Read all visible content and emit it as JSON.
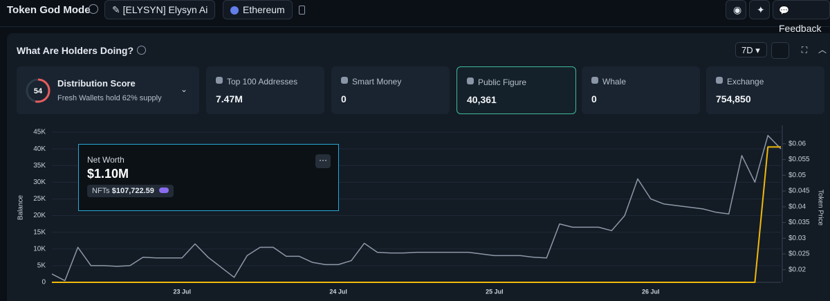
{
  "header": {
    "title": "Token God Mode",
    "token": "[ELYSYN] Elysyn Ai",
    "chain": "Ethereum",
    "feedback": "Feedback"
  },
  "panel": {
    "title": "What Are Holders Doing?",
    "period": "7D"
  },
  "distribution": {
    "score": "54",
    "title": "Distribution Score",
    "subtitle": "Fresh Wallets hold 62% supply"
  },
  "cards": [
    {
      "label": "Top 100 Addresses",
      "value": "7.47M"
    },
    {
      "label": "Smart Money",
      "value": "0"
    },
    {
      "label": "Public Figure",
      "value": "40,361"
    },
    {
      "label": "Whale",
      "value": "0"
    },
    {
      "label": "Exchange",
      "value": "754,850"
    }
  ],
  "tooltip": {
    "title": "Net Worth",
    "value": "$1.10M",
    "nft_label": "NFTs",
    "nft_value": "$107,722.59"
  },
  "chart_data": {
    "type": "line",
    "ylabel": "Balance",
    "y2label": "Token Price",
    "categories": [
      null,
      null,
      null,
      null,
      null,
      null,
      null,
      null,
      null,
      null,
      "23 Jul",
      null,
      null,
      null,
      null,
      null,
      null,
      null,
      null,
      null,
      null,
      null,
      "24 Jul",
      null,
      null,
      null,
      null,
      null,
      null,
      null,
      null,
      null,
      null,
      null,
      "25 Jul",
      null,
      null,
      null,
      null,
      null,
      null,
      null,
      null,
      null,
      null,
      null,
      "26 Jul",
      null,
      null,
      null,
      null,
      null,
      null,
      null,
      null,
      null,
      null
    ],
    "ylim": [
      0,
      45000
    ],
    "yticks": [
      0,
      {
        "value": 5000,
        "label": "5K"
      },
      {
        "value": 10000,
        "label": "10K"
      },
      {
        "value": 15000,
        "label": "15K"
      },
      {
        "value": 20000,
        "label": "20K"
      },
      {
        "value": 25000,
        "label": "25K"
      },
      {
        "value": 30000,
        "label": "30K"
      },
      {
        "value": 35000,
        "label": "35K"
      },
      {
        "value": 40000,
        "label": "40K"
      },
      {
        "value": 45000,
        "label": "45K"
      }
    ],
    "y2lim": [
      0.016,
      0.0637
    ],
    "y2ticks": [
      {
        "value": 0.02,
        "label": "$0.02"
      },
      {
        "value": 0.025,
        "label": "$0.025"
      },
      {
        "value": 0.03,
        "label": "$0.03"
      },
      {
        "value": 0.035,
        "label": "$0.035"
      },
      {
        "value": 0.04,
        "label": "$0.04"
      },
      {
        "value": 0.045,
        "label": "$0.045"
      },
      {
        "value": 0.05,
        "label": "$0.05"
      },
      {
        "value": 0.055,
        "label": "$0.055"
      },
      {
        "value": 0.06,
        "label": "$0.06"
      }
    ],
    "grid": true,
    "series": [
      {
        "color": "#8e99a8",
        "values": [
          2500,
          500,
          10500,
          5000,
          5000,
          4800,
          5000,
          7500,
          7300,
          7300,
          7300,
          11500,
          7500,
          4500,
          1500,
          8000,
          10500,
          10500,
          7800,
          7800,
          6000,
          5300,
          5300,
          6500,
          11700,
          9000,
          8800,
          8800,
          9000,
          9000,
          9000,
          9000,
          9000,
          8500,
          8000,
          8000,
          8000,
          7500,
          7300,
          17500,
          16500,
          16500,
          16500,
          15500,
          20000,
          31000,
          25000,
          23500,
          23000,
          22500,
          22000,
          21000,
          20500,
          38000,
          30000,
          44000,
          40000
        ]
      },
      {
        "color": "#f0b90b",
        "axis": "y2",
        "values": [
          0.016,
          0.016,
          0.016,
          0.016,
          0.016,
          0.016,
          0.016,
          0.016,
          0.016,
          0.016,
          0.016,
          0.016,
          0.016,
          0.016,
          0.016,
          0.016,
          0.016,
          0.016,
          0.016,
          0.016,
          0.016,
          0.016,
          0.016,
          0.016,
          0.016,
          0.016,
          0.016,
          0.016,
          0.016,
          0.016,
          0.016,
          0.016,
          0.016,
          0.016,
          0.016,
          0.016,
          0.016,
          0.016,
          0.016,
          0.016,
          0.016,
          0.016,
          0.016,
          0.016,
          0.016,
          0.016,
          0.016,
          0.016,
          0.016,
          0.016,
          0.016,
          0.016,
          0.016,
          0.016,
          0.016,
          0.059,
          0.059
        ]
      }
    ]
  }
}
